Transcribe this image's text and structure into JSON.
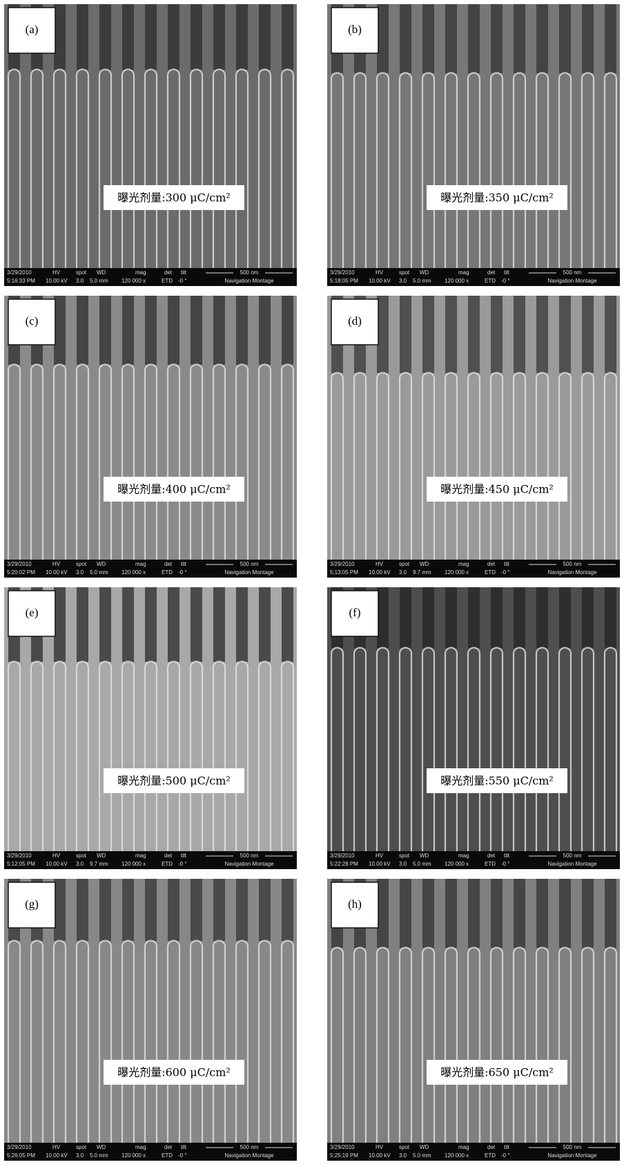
{
  "info": {
    "header": [
      "HV",
      "spot",
      "WD",
      "mag",
      "det",
      "tilt"
    ],
    "scale": "500 nm",
    "hv": "10.00 kV",
    "spot": "3.0",
    "mag": "120 000 x",
    "det": "ETD",
    "tilt": "-0 °",
    "montage": "Navigation Montage",
    "date": "3/29/2010"
  },
  "panels": [
    {
      "label": "(a)",
      "caption": "曝光剂量:300 μC/cm²",
      "time": "5:16:33 PM",
      "wd": "5.0 mm"
    },
    {
      "label": "(b)",
      "caption": "曝光剂量:350 μC/cm²",
      "time": "5:18:05 PM",
      "wd": "5.0 mm"
    },
    {
      "label": "(c)",
      "caption": "曝光剂量:400 μC/cm²",
      "time": "5:20:02 PM",
      "wd": "5.0 mm"
    },
    {
      "label": "(d)",
      "caption": "曝光剂量:450 μC/cm²",
      "time": "5:13:05 PM",
      "wd": "9.7 mm"
    },
    {
      "label": "(e)",
      "caption": "曝光剂量:500 μC/cm²",
      "time": "5:12:05 PM",
      "wd": "9.7 mm"
    },
    {
      "label": "(f)",
      "caption": "曝光剂量:550 μC/cm²",
      "time": "5:22:28 PM",
      "wd": "5.0 mm"
    },
    {
      "label": "(g)",
      "caption": "曝光剂量:600 μC/cm²",
      "time": "5:26:05 PM",
      "wd": "5.0 mm"
    },
    {
      "label": "(h)",
      "caption": "曝光剂量:650 μC/cm²",
      "time": "5:25:19 PM",
      "wd": "5.0 mm"
    }
  ]
}
